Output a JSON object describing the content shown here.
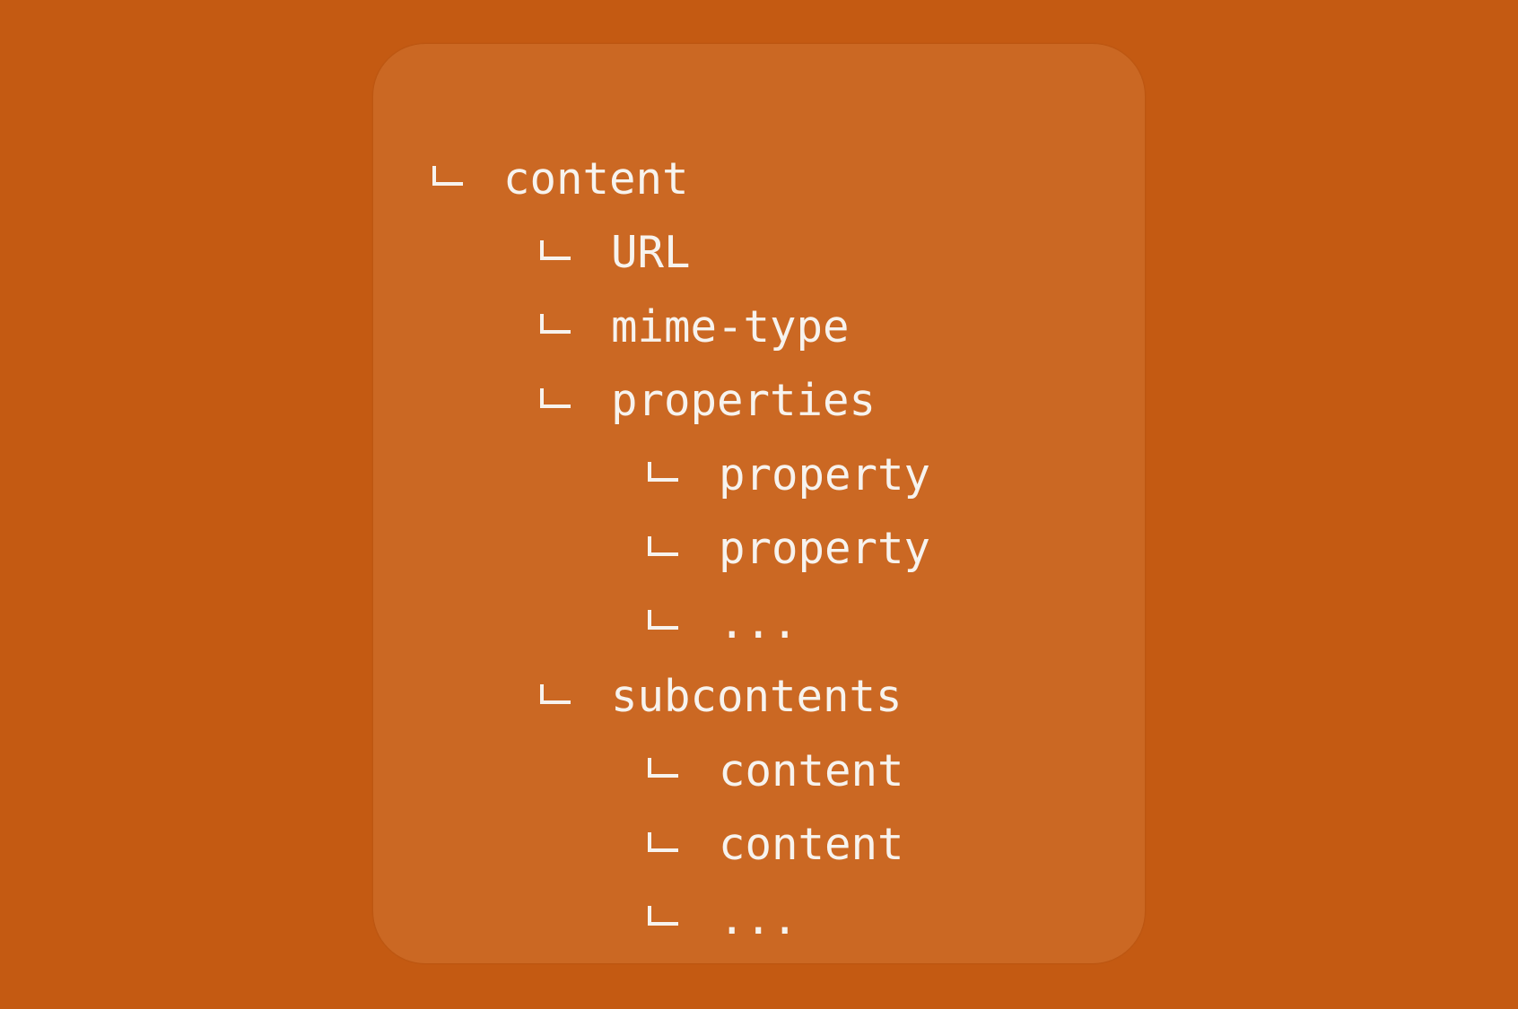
{
  "tree": [
    {
      "label": "content",
      "depth": 0
    },
    {
      "label": "URL",
      "depth": 1
    },
    {
      "label": "mime-type",
      "depth": 1
    },
    {
      "label": "properties",
      "depth": 1
    },
    {
      "label": "property",
      "depth": 2
    },
    {
      "label": "property",
      "depth": 2
    },
    {
      "label": "...",
      "depth": 2
    },
    {
      "label": "subcontents",
      "depth": 1
    },
    {
      "label": "content",
      "depth": 2
    },
    {
      "label": "content",
      "depth": 2
    },
    {
      "label": "...",
      "depth": 2
    }
  ],
  "colors": {
    "background": "#c45a12",
    "card": "#cb6823",
    "text": "#f7f3ee"
  }
}
